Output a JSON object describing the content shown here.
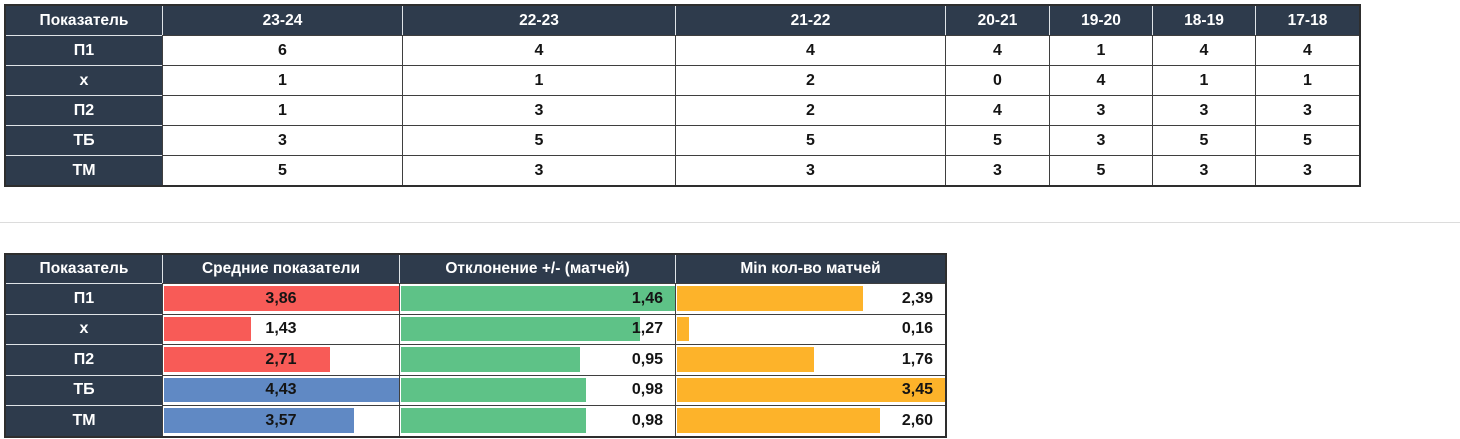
{
  "colors": {
    "header_bg": "#2e3b4c",
    "grid_border": "#3f3f3f",
    "red_bar": "#f85b57",
    "blue_bar": "#6089c4",
    "green_bar": "#5ec287",
    "orange_bar": "#fdb32a"
  },
  "top_table": {
    "header": [
      "Показатель",
      "23-24",
      "22-23",
      "21-22",
      "20-21",
      "19-20",
      "18-19",
      "17-18"
    ],
    "rows": [
      {
        "label": "П1",
        "values": [
          "6",
          "4",
          "4",
          "4",
          "1",
          "4",
          "4"
        ]
      },
      {
        "label": "х",
        "values": [
          "1",
          "1",
          "2",
          "0",
          "4",
          "1",
          "1"
        ]
      },
      {
        "label": "П2",
        "values": [
          "1",
          "3",
          "2",
          "4",
          "3",
          "3",
          "3"
        ]
      },
      {
        "label": "ТБ",
        "values": [
          "3",
          "5",
          "5",
          "5",
          "3",
          "5",
          "5"
        ]
      },
      {
        "label": "ТМ",
        "values": [
          "5",
          "3",
          "3",
          "3",
          "5",
          "3",
          "3"
        ]
      }
    ]
  },
  "bottom_table": {
    "header": [
      "Показатель",
      "Средние показатели",
      "Отклонение +/- (матчей)",
      "Min кол-во матчей"
    ],
    "rows": [
      {
        "label": "П1",
        "bars": [
          {
            "text": "3,86",
            "value": 3.86,
            "max": 3.86,
            "color": "#f85b57"
          },
          {
            "text": "1,46",
            "value": 1.46,
            "max": 1.46,
            "color": "#5ec287"
          },
          {
            "text": "2,39",
            "value": 2.39,
            "max": 3.45,
            "color": "#fdb32a"
          }
        ]
      },
      {
        "label": "х",
        "bars": [
          {
            "text": "1,43",
            "value": 1.43,
            "max": 3.86,
            "color": "#f85b57"
          },
          {
            "text": "1,27",
            "value": 1.27,
            "max": 1.46,
            "color": "#5ec287"
          },
          {
            "text": "0,16",
            "value": 0.16,
            "max": 3.45,
            "color": "#fdb32a"
          }
        ]
      },
      {
        "label": "П2",
        "bars": [
          {
            "text": "2,71",
            "value": 2.71,
            "max": 3.86,
            "color": "#f85b57"
          },
          {
            "text": "0,95",
            "value": 0.95,
            "max": 1.46,
            "color": "#5ec287"
          },
          {
            "text": "1,76",
            "value": 1.76,
            "max": 3.45,
            "color": "#fdb32a"
          }
        ]
      },
      {
        "label": "ТБ",
        "bars": [
          {
            "text": "4,43",
            "value": 4.43,
            "max": 4.43,
            "color": "#6089c4"
          },
          {
            "text": "0,98",
            "value": 0.98,
            "max": 1.46,
            "color": "#5ec287"
          },
          {
            "text": "3,45",
            "value": 3.45,
            "max": 3.45,
            "color": "#fdb32a"
          }
        ]
      },
      {
        "label": "ТМ",
        "bars": [
          {
            "text": "3,57",
            "value": 3.57,
            "max": 4.43,
            "color": "#6089c4"
          },
          {
            "text": "0,98",
            "value": 0.98,
            "max": 1.46,
            "color": "#5ec287"
          },
          {
            "text": "2,60",
            "value": 2.6,
            "max": 3.45,
            "color": "#fdb32a"
          }
        ]
      }
    ]
  }
}
